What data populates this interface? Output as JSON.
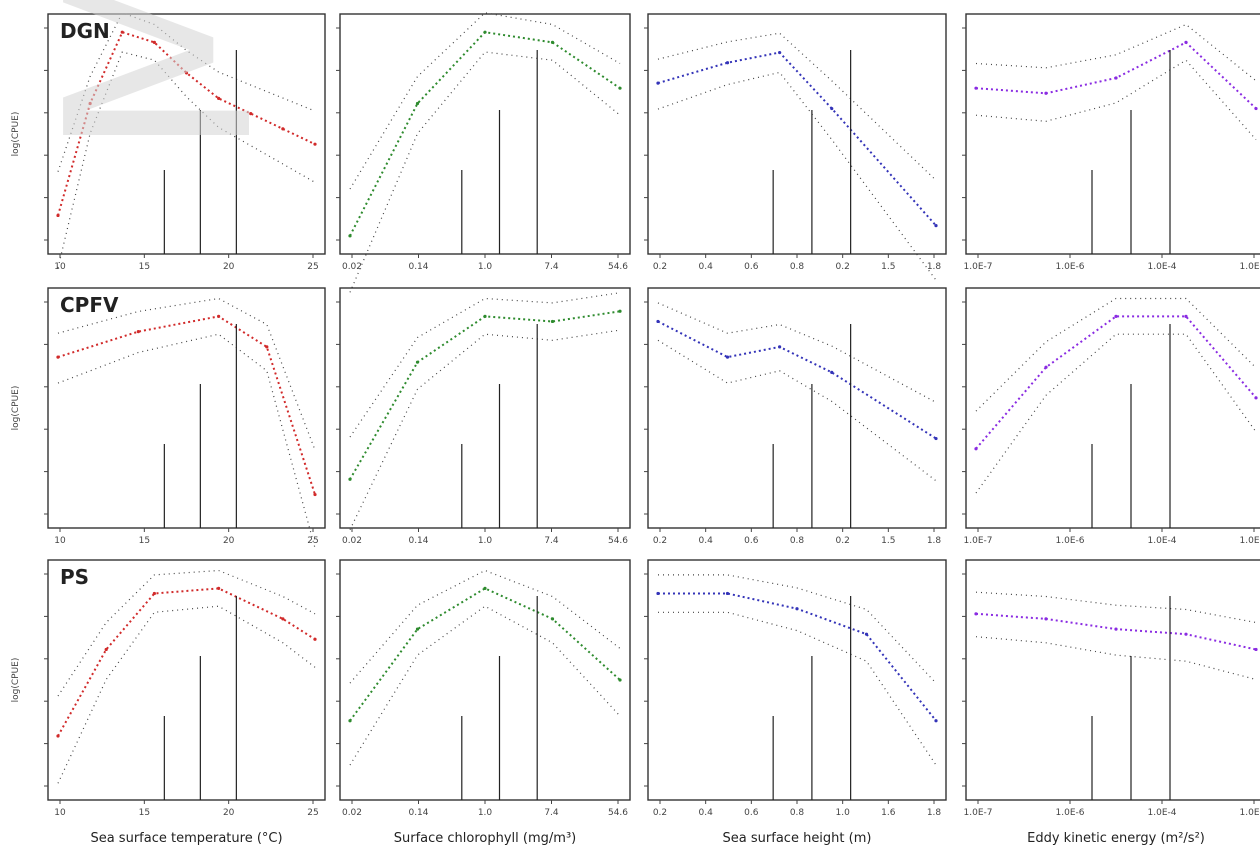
{
  "watermark": "Manuscript",
  "colors": {
    "sst": "#d12a2a",
    "chl": "#2e8b2e",
    "ssh": "#3333b8",
    "eke": "#8a2be2",
    "frame": "#333333"
  },
  "x_labels": [
    "Sea surface temperature (°C)",
    "Surface chlorophyll (mg/m³)",
    "Sea surface height (m)",
    "Eddy kinetic energy (m²/s²)"
  ],
  "ylabel": "log(CPUE)",
  "chart_data": [
    {
      "type": "line",
      "row": "DGN",
      "column": 1,
      "title": "DGN",
      "xticks": [
        "10",
        "15",
        "20",
        "25"
      ],
      "series": [
        {
          "values": [
            [
              10,
              -3.4
            ],
            [
              12,
              -1.2
            ],
            [
              14,
              0.2
            ],
            [
              16,
              0.0
            ],
            [
              18,
              -0.6
            ],
            [
              20,
              -1.1
            ],
            [
              22,
              -1.4
            ],
            [
              24,
              -1.7
            ],
            [
              26,
              -2.0
            ]
          ]
        }
      ]
    },
    {
      "type": "line",
      "row": "DGN",
      "column": 2,
      "xticks": [
        "0.02",
        "0.14",
        "1.0",
        "7.4",
        "54.6"
      ],
      "series": [
        {
          "values": [
            [
              1,
              -3.8
            ],
            [
              2,
              -1.2
            ],
            [
              3,
              0.2
            ],
            [
              4,
              0.0
            ],
            [
              5,
              -0.9
            ]
          ]
        }
      ]
    },
    {
      "type": "line",
      "row": "DGN",
      "column": 3,
      "xticks": [
        "0.2",
        "0.4",
        "0.6",
        "0.8",
        "0.2",
        "1.5",
        "1.8"
      ],
      "series": [
        {
          "values": [
            [
              0.2,
              -0.8
            ],
            [
              0.6,
              -0.4
            ],
            [
              0.9,
              -0.2
            ],
            [
              1.2,
              -1.3
            ],
            [
              1.8,
              -3.6
            ]
          ]
        }
      ]
    },
    {
      "type": "line",
      "row": "DGN",
      "column": 4,
      "xticks": [
        "1.0E-7",
        "1.0E-6",
        "1.0E-4",
        "1.0E-2"
      ],
      "series": [
        {
          "values": [
            [
              1,
              -0.9
            ],
            [
              2,
              -1.0
            ],
            [
              3,
              -0.7
            ],
            [
              4,
              0.0
            ],
            [
              5,
              -1.3
            ]
          ]
        }
      ]
    },
    {
      "type": "line",
      "row": "CPFV",
      "column": 1,
      "title": "CPFV",
      "xticks": [
        "10",
        "15",
        "20",
        "25"
      ],
      "series": [
        {
          "values": [
            [
              10,
              -0.8
            ],
            [
              15,
              -0.3
            ],
            [
              20,
              0.0
            ],
            [
              23,
              -0.6
            ],
            [
              26,
              -3.5
            ]
          ]
        }
      ]
    },
    {
      "type": "line",
      "row": "CPFV",
      "column": 2,
      "xticks": [
        "0.02",
        "0.14",
        "1.0",
        "7.4",
        "54.6"
      ],
      "series": [
        {
          "values": [
            [
              1,
              -3.2
            ],
            [
              2,
              -0.9
            ],
            [
              3,
              0.0
            ],
            [
              4,
              -0.1
            ],
            [
              5,
              0.1
            ]
          ]
        }
      ]
    },
    {
      "type": "line",
      "row": "CPFV",
      "column": 3,
      "xticks": [
        "0.2",
        "0.4",
        "0.6",
        "0.8",
        "0.2",
        "1.5",
        "1.8"
      ],
      "series": [
        {
          "values": [
            [
              0.2,
              -0.1
            ],
            [
              0.6,
              -0.8
            ],
            [
              0.9,
              -0.6
            ],
            [
              1.2,
              -1.1
            ],
            [
              1.8,
              -2.4
            ]
          ]
        }
      ]
    },
    {
      "type": "line",
      "row": "CPFV",
      "column": 4,
      "xticks": [
        "1.0E-7",
        "1.0E-6",
        "1.0E-4",
        "1.0E-2"
      ],
      "series": [
        {
          "values": [
            [
              1,
              -2.6
            ],
            [
              2,
              -1.0
            ],
            [
              3,
              0.0
            ],
            [
              4,
              0.0
            ],
            [
              5,
              -1.6
            ]
          ]
        }
      ]
    },
    {
      "type": "line",
      "row": "PS",
      "column": 1,
      "title": "PS",
      "xticks": [
        "10",
        "15",
        "20",
        "25"
      ],
      "series": [
        {
          "values": [
            [
              10,
              -2.9
            ],
            [
              13,
              -1.2
            ],
            [
              16,
              -0.1
            ],
            [
              20,
              0.0
            ],
            [
              24,
              -0.6
            ],
            [
              26,
              -1.0
            ]
          ]
        }
      ]
    },
    {
      "type": "line",
      "row": "PS",
      "column": 2,
      "xticks": [
        "0.02",
        "0.14",
        "1.0",
        "7.4",
        "54.6"
      ],
      "series": [
        {
          "values": [
            [
              1,
              -2.6
            ],
            [
              2,
              -0.8
            ],
            [
              3,
              0.0
            ],
            [
              4,
              -0.6
            ],
            [
              5,
              -1.8
            ]
          ]
        }
      ]
    },
    {
      "type": "line",
      "row": "PS",
      "column": 3,
      "xticks": [
        "0.2",
        "0.4",
        "0.6",
        "0.8",
        "1.0",
        "1.6",
        "1.8"
      ],
      "series": [
        {
          "values": [
            [
              0.2,
              -0.1
            ],
            [
              0.6,
              -0.1
            ],
            [
              1.0,
              -0.4
            ],
            [
              1.4,
              -0.9
            ],
            [
              1.8,
              -2.6
            ]
          ]
        }
      ]
    },
    {
      "type": "line",
      "row": "PS",
      "column": 4,
      "xticks": [
        "1.0E-7",
        "1.0E-6",
        "1.0E-4",
        "1.0E-2"
      ],
      "series": [
        {
          "values": [
            [
              1,
              -0.5
            ],
            [
              2,
              -0.6
            ],
            [
              3,
              -0.8
            ],
            [
              4,
              -0.9
            ],
            [
              5,
              -1.2
            ]
          ]
        }
      ]
    }
  ]
}
